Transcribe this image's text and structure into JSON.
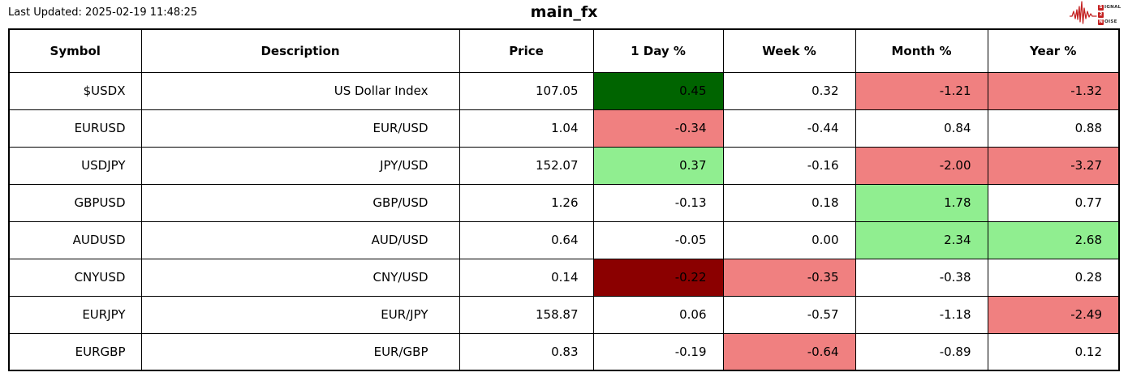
{
  "header": {
    "last_updated": "Last Updated: 2025-02-19 11:48:25",
    "title": "main_fx",
    "logo": {
      "lines": [
        {
          "boxed": "S",
          "rest": "IGNAL"
        },
        {
          "boxed": "2",
          "rest": ""
        },
        {
          "boxed": "N",
          "rest": "OISE"
        }
      ]
    }
  },
  "colors": {
    "strong_positive": "#006400",
    "positive": "#90EE90",
    "negative": "#F08080",
    "strong_negative": "#8B0000",
    "logo_red": "#C42222",
    "border": "#000000",
    "background": "#FFFFFF"
  },
  "table": {
    "columns": [
      {
        "key": "symbol",
        "label": "Symbol"
      },
      {
        "key": "description",
        "label": "Description"
      },
      {
        "key": "price",
        "label": "Price"
      },
      {
        "key": "day",
        "label": "1 Day %"
      },
      {
        "key": "week",
        "label": "Week %"
      },
      {
        "key": "month",
        "label": "Month %"
      },
      {
        "key": "year",
        "label": "Year %"
      }
    ],
    "rows": [
      {
        "cells": [
          {
            "t": "$USDX"
          },
          {
            "t": "US Dollar Index"
          },
          {
            "t": "107.05"
          },
          {
            "t": "0.45",
            "bg": "strong_positive"
          },
          {
            "t": "0.32"
          },
          {
            "t": "-1.21",
            "bg": "negative"
          },
          {
            "t": "-1.32",
            "bg": "negative"
          }
        ]
      },
      {
        "cells": [
          {
            "t": "EURUSD"
          },
          {
            "t": "EUR/USD"
          },
          {
            "t": "1.04"
          },
          {
            "t": "-0.34",
            "bg": "negative"
          },
          {
            "t": "-0.44"
          },
          {
            "t": "0.84"
          },
          {
            "t": "0.88"
          }
        ]
      },
      {
        "cells": [
          {
            "t": "USDJPY"
          },
          {
            "t": "JPY/USD"
          },
          {
            "t": "152.07"
          },
          {
            "t": "0.37",
            "bg": "positive"
          },
          {
            "t": "-0.16"
          },
          {
            "t": "-2.00",
            "bg": "negative"
          },
          {
            "t": "-3.27",
            "bg": "negative"
          }
        ]
      },
      {
        "cells": [
          {
            "t": "GBPUSD"
          },
          {
            "t": "GBP/USD"
          },
          {
            "t": "1.26"
          },
          {
            "t": "-0.13"
          },
          {
            "t": "0.18"
          },
          {
            "t": "1.78",
            "bg": "positive"
          },
          {
            "t": "0.77"
          }
        ]
      },
      {
        "cells": [
          {
            "t": "AUDUSD"
          },
          {
            "t": "AUD/USD"
          },
          {
            "t": "0.64"
          },
          {
            "t": "-0.05"
          },
          {
            "t": "0.00"
          },
          {
            "t": "2.34",
            "bg": "positive"
          },
          {
            "t": "2.68",
            "bg": "positive"
          }
        ]
      },
      {
        "cells": [
          {
            "t": "CNYUSD"
          },
          {
            "t": "CNY/USD"
          },
          {
            "t": "0.14"
          },
          {
            "t": "-0.22",
            "bg": "strong_negative"
          },
          {
            "t": "-0.35",
            "bg": "negative"
          },
          {
            "t": "-0.38"
          },
          {
            "t": "0.28"
          }
        ]
      },
      {
        "cells": [
          {
            "t": "EURJPY"
          },
          {
            "t": "EUR/JPY"
          },
          {
            "t": "158.87"
          },
          {
            "t": "0.06"
          },
          {
            "t": "-0.57"
          },
          {
            "t": "-1.18"
          },
          {
            "t": "-2.49",
            "bg": "negative"
          }
        ]
      },
      {
        "cells": [
          {
            "t": "EURGBP"
          },
          {
            "t": "EUR/GBP"
          },
          {
            "t": "0.83"
          },
          {
            "t": "-0.19"
          },
          {
            "t": "-0.64",
            "bg": "negative"
          },
          {
            "t": "-0.89"
          },
          {
            "t": "0.12"
          }
        ]
      }
    ]
  },
  "chart_data": {
    "type": "table",
    "title": "main_fx",
    "columns": [
      "Symbol",
      "Description",
      "Price",
      "1 Day %",
      "Week %",
      "Month %",
      "Year %"
    ],
    "rows": [
      [
        "$USDX",
        "US Dollar Index",
        107.05,
        0.45,
        0.32,
        -1.21,
        -1.32
      ],
      [
        "EURUSD",
        "EUR/USD",
        1.04,
        -0.34,
        -0.44,
        0.84,
        0.88
      ],
      [
        "USDJPY",
        "JPY/USD",
        152.07,
        0.37,
        -0.16,
        -2.0,
        -3.27
      ],
      [
        "GBPUSD",
        "GBP/USD",
        1.26,
        -0.13,
        0.18,
        1.78,
        0.77
      ],
      [
        "AUDUSD",
        "AUD/USD",
        0.64,
        -0.05,
        0.0,
        2.34,
        2.68
      ],
      [
        "CNYUSD",
        "CNY/USD",
        0.14,
        -0.22,
        -0.35,
        -0.38,
        0.28
      ],
      [
        "EURJPY",
        "EUR/JPY",
        158.87,
        0.06,
        -0.57,
        -1.18,
        -2.49
      ],
      [
        "EURGBP",
        "EUR/GBP",
        0.83,
        -0.19,
        -0.64,
        -0.89,
        0.12
      ]
    ],
    "highlight_rules": {
      "strong_positive_bg": "#006400",
      "positive_bg": "#90EE90",
      "negative_bg": "#F08080",
      "strong_negative_bg": "#8B0000"
    }
  }
}
